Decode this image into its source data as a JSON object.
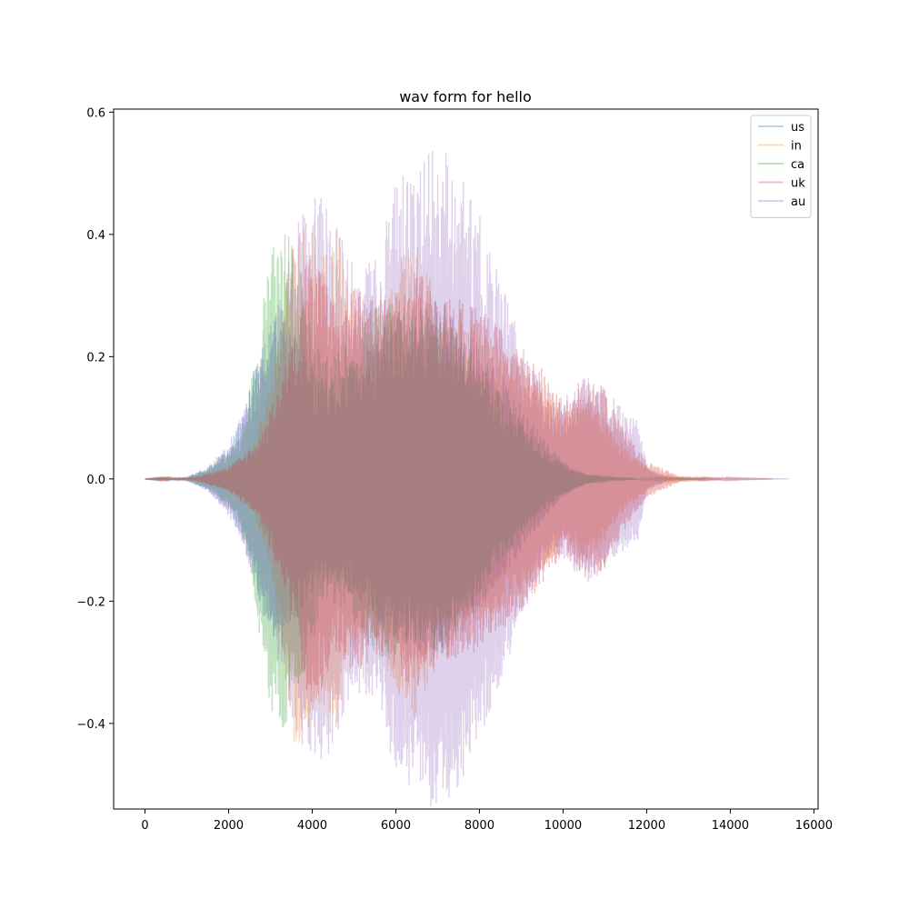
{
  "chart_data": {
    "type": "line",
    "title": "wav form for hello",
    "xlabel": "",
    "ylabel": "",
    "xlim": [
      -750,
      16100
    ],
    "ylim": [
      -0.54,
      0.605
    ],
    "xticks": [
      0,
      2000,
      4000,
      6000,
      8000,
      10000,
      12000,
      14000,
      16000
    ],
    "xtick_labels": [
      "0",
      "2000",
      "4000",
      "6000",
      "8000",
      "10000",
      "12000",
      "14000",
      "16000"
    ],
    "yticks": [
      -0.4,
      -0.2,
      0.0,
      0.2,
      0.4,
      0.6
    ],
    "ytick_labels": [
      "−0.4",
      "−0.2",
      "0.0",
      "0.2",
      "0.4",
      "0.6"
    ],
    "grid": false,
    "legend_position": "top-right",
    "series_alpha": 0.3,
    "series": [
      {
        "name": "us",
        "color": "#1f77b4",
        "length": 11700,
        "envelope": [
          [
            0,
            0
          ],
          [
            1000,
            0.002
          ],
          [
            1500,
            0.02
          ],
          [
            2000,
            0.05
          ],
          [
            2400,
            0.12
          ],
          [
            2700,
            0.2
          ],
          [
            3000,
            0.25
          ],
          [
            3300,
            0.28
          ],
          [
            3700,
            0.22
          ],
          [
            4200,
            0.17
          ],
          [
            4700,
            0.18
          ],
          [
            5200,
            0.2
          ],
          [
            5800,
            0.26
          ],
          [
            6400,
            0.28
          ],
          [
            7000,
            0.3
          ],
          [
            7500,
            0.26
          ],
          [
            8000,
            0.22
          ],
          [
            8500,
            0.17
          ],
          [
            9000,
            0.12
          ],
          [
            9500,
            0.07
          ],
          [
            10000,
            0.03
          ],
          [
            10500,
            0.01
          ],
          [
            11000,
            0.003
          ],
          [
            11700,
            0
          ]
        ]
      },
      {
        "name": "in",
        "color": "#ff7f0e",
        "length": 13800,
        "envelope": [
          [
            0,
            0
          ],
          [
            1200,
            0.003
          ],
          [
            2000,
            0.02
          ],
          [
            2600,
            0.06
          ],
          [
            3000,
            0.15
          ],
          [
            3300,
            0.3
          ],
          [
            3600,
            0.45
          ],
          [
            3900,
            0.42
          ],
          [
            4300,
            0.38
          ],
          [
            4600,
            0.42
          ],
          [
            4900,
            0.3
          ],
          [
            5400,
            0.25
          ],
          [
            6000,
            0.35
          ],
          [
            6500,
            0.4
          ],
          [
            7000,
            0.3
          ],
          [
            7500,
            0.28
          ],
          [
            8000,
            0.26
          ],
          [
            8500,
            0.22
          ],
          [
            9000,
            0.2
          ],
          [
            9500,
            0.15
          ],
          [
            10000,
            0.1
          ],
          [
            10500,
            0.14
          ],
          [
            11000,
            0.1
          ],
          [
            11500,
            0.05
          ],
          [
            12200,
            0.01
          ],
          [
            13000,
            0.002
          ],
          [
            13800,
            0
          ]
        ]
      },
      {
        "name": "ca",
        "color": "#2ca02c",
        "length": 13400,
        "envelope": [
          [
            0,
            0
          ],
          [
            1000,
            0.003
          ],
          [
            1600,
            0.02
          ],
          [
            2200,
            0.06
          ],
          [
            2500,
            0.15
          ],
          [
            2800,
            0.28
          ],
          [
            3000,
            0.38
          ],
          [
            3300,
            0.42
          ],
          [
            3600,
            0.38
          ],
          [
            3900,
            0.3
          ],
          [
            4300,
            0.2
          ],
          [
            4800,
            0.22
          ],
          [
            5300,
            0.27
          ],
          [
            5800,
            0.3
          ],
          [
            6300,
            0.27
          ],
          [
            6900,
            0.28
          ],
          [
            7400,
            0.25
          ],
          [
            7900,
            0.2
          ],
          [
            8400,
            0.15
          ],
          [
            8900,
            0.1
          ],
          [
            9400,
            0.06
          ],
          [
            9900,
            0.03
          ],
          [
            10500,
            0.01
          ],
          [
            11500,
            0.002
          ],
          [
            13400,
            0
          ]
        ]
      },
      {
        "name": "uk",
        "color": "#d62728",
        "length": 15000,
        "envelope": [
          [
            0,
            0
          ],
          [
            1200,
            0.003
          ],
          [
            2000,
            0.02
          ],
          [
            2700,
            0.06
          ],
          [
            3200,
            0.15
          ],
          [
            3600,
            0.25
          ],
          [
            3900,
            0.37
          ],
          [
            4200,
            0.35
          ],
          [
            4600,
            0.28
          ],
          [
            5000,
            0.32
          ],
          [
            5400,
            0.3
          ],
          [
            5800,
            0.3
          ],
          [
            6200,
            0.33
          ],
          [
            6600,
            0.37
          ],
          [
            7000,
            0.3
          ],
          [
            7500,
            0.3
          ],
          [
            8000,
            0.28
          ],
          [
            8500,
            0.25
          ],
          [
            9000,
            0.22
          ],
          [
            9500,
            0.18
          ],
          [
            10000,
            0.12
          ],
          [
            10500,
            0.17
          ],
          [
            11000,
            0.15
          ],
          [
            11500,
            0.08
          ],
          [
            12000,
            0.03
          ],
          [
            12800,
            0.005
          ],
          [
            14000,
            0.001
          ],
          [
            15000,
            0
          ]
        ]
      },
      {
        "name": "au",
        "color": "#9467bd",
        "length": 15400,
        "envelope": [
          [
            0,
            0
          ],
          [
            1000,
            0.004
          ],
          [
            1500,
            0.02
          ],
          [
            2000,
            0.06
          ],
          [
            2400,
            0.12
          ],
          [
            2800,
            0.22
          ],
          [
            3200,
            0.3
          ],
          [
            3600,
            0.42
          ],
          [
            4000,
            0.47
          ],
          [
            4400,
            0.45
          ],
          [
            4800,
            0.38
          ],
          [
            5200,
            0.35
          ],
          [
            5600,
            0.36
          ],
          [
            6000,
            0.5
          ],
          [
            6500,
            0.52
          ],
          [
            6900,
            0.55
          ],
          [
            7300,
            0.53
          ],
          [
            7700,
            0.48
          ],
          [
            8200,
            0.4
          ],
          [
            8700,
            0.3
          ],
          [
            9200,
            0.2
          ],
          [
            9700,
            0.12
          ],
          [
            10200,
            0.15
          ],
          [
            10600,
            0.17
          ],
          [
            11000,
            0.15
          ],
          [
            11400,
            0.12
          ],
          [
            11800,
            0.1
          ],
          [
            12000,
            0.02
          ],
          [
            12500,
            0.003
          ],
          [
            13500,
            0.001
          ],
          [
            15400,
            0
          ]
        ]
      }
    ]
  }
}
